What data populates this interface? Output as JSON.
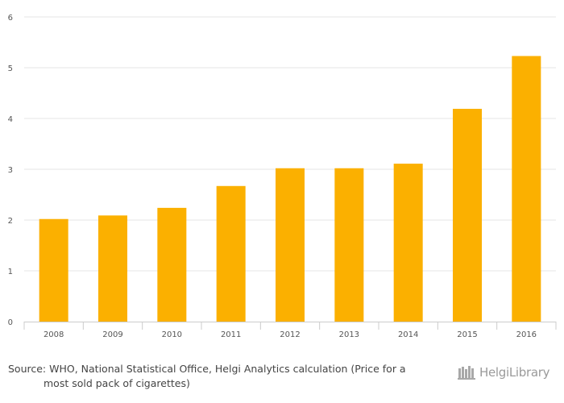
{
  "chart_data": {
    "type": "bar",
    "title": "",
    "xlabel": "",
    "ylabel": "",
    "categories": [
      "2008",
      "2009",
      "2010",
      "2011",
      "2012",
      "2013",
      "2014",
      "2015",
      "2016"
    ],
    "values": [
      2.02,
      2.09,
      2.24,
      2.67,
      3.02,
      3.02,
      3.11,
      4.19,
      5.23
    ],
    "ylim": [
      0,
      6
    ],
    "yticks": [
      "0",
      "1",
      "2",
      "3",
      "4",
      "5",
      "6"
    ],
    "grid": true,
    "bar_color": "#FBB000"
  },
  "footer": {
    "source_line1": "Source: WHO, National Statistical Office, Helgi Analytics calculation (Price for a",
    "source_line2": "most sold pack of cigarettes)",
    "logo_text": "HelgiLibrary"
  }
}
